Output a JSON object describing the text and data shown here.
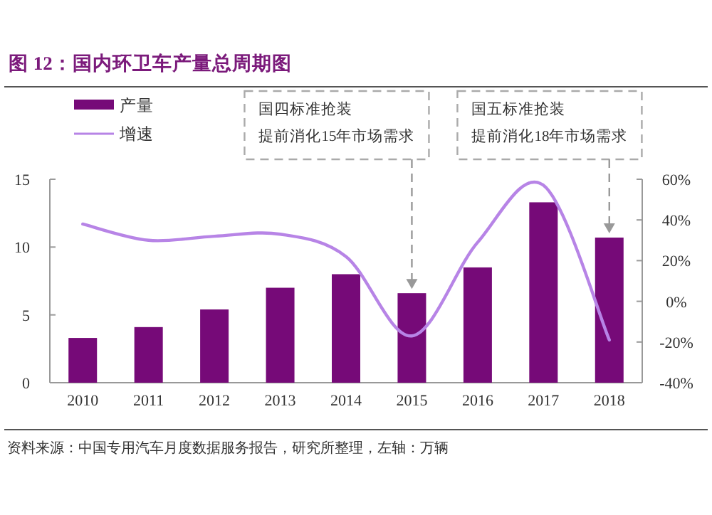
{
  "chart_data": {
    "type": "bar",
    "title": "图 12：国内环卫车产量总周期图",
    "categories": [
      "2010",
      "2011",
      "2012",
      "2013",
      "2014",
      "2015",
      "2016",
      "2017",
      "2018"
    ],
    "series": [
      {
        "name": "产量",
        "color": "#760a78",
        "values": [
          3.3,
          4.1,
          5.4,
          7.0,
          8.0,
          6.6,
          8.5,
          13.3,
          10.7
        ]
      },
      {
        "name": "增速",
        "type": "line",
        "axis": "y2",
        "color": "#b784e6",
        "values": [
          38,
          30,
          32,
          33,
          22,
          -17,
          29,
          57,
          -19
        ]
      }
    ],
    "ylim": [
      0,
      15
    ],
    "yticks": [
      0,
      5,
      10,
      15
    ],
    "y2lim": [
      -40,
      60
    ],
    "y2ticks": [
      {
        "value": -40,
        "label": "-40%"
      },
      {
        "value": -20,
        "label": "-20%"
      },
      {
        "value": 0,
        "label": "0%"
      },
      {
        "value": 20,
        "label": "20%"
      },
      {
        "value": 40,
        "label": "40%"
      },
      {
        "value": 60,
        "label": "60%"
      }
    ],
    "legend": "top left",
    "annotations": [
      "国四标准抢装",
      {
        "text": "提前消化15年市场需求",
        "x": "2015",
        "y": 6.6
      },
      "国五标准抢装",
      {
        "text": "提前消化18年市场需求",
        "x": "2018",
        "y": 10.7
      },
      "资料来源：中国专用汽车月度数据服务报告，研究所整理，左轴：万辆"
    ]
  }
}
